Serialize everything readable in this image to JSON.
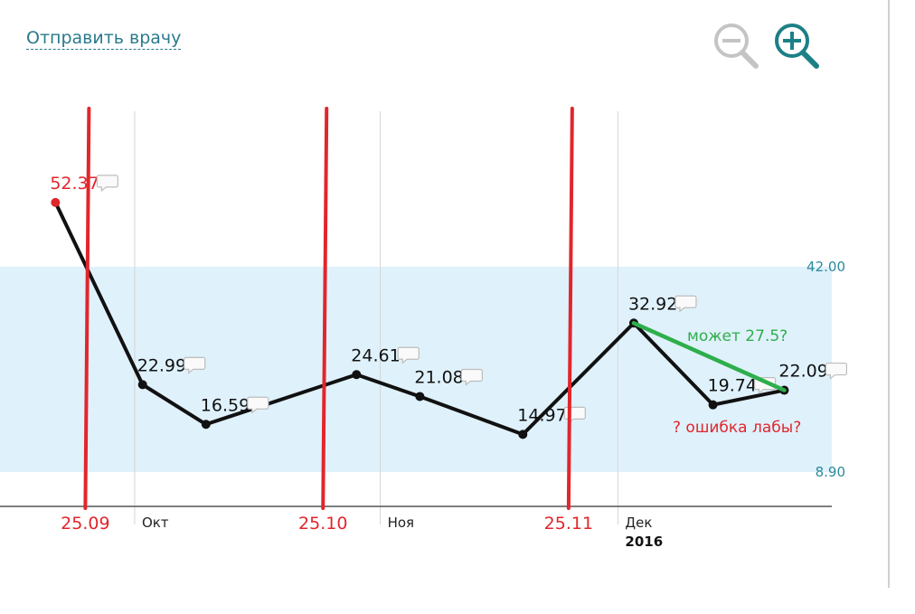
{
  "header": {
    "send_link": "Отправить врачу",
    "zoom_out_icon": "zoom-out-icon",
    "zoom_in_icon": "zoom-in-icon"
  },
  "colors": {
    "line": "#111111",
    "band": "#dff1fb",
    "ref_text": "#2a8a9c",
    "annotation_red": "#e1262c",
    "annotation_green": "#2eae4a",
    "link": "#2a7a8c"
  },
  "chart_data": {
    "type": "line",
    "title": "",
    "xlabel": "",
    "ylabel": "",
    "x": [
      "2016-09-21",
      "2016-10-02",
      "2016-10-10",
      "2016-10-29",
      "2016-11-06",
      "2016-11-19",
      "2016-12-03",
      "2016-12-13",
      "2016-12-22"
    ],
    "values": [
      52.37,
      22.99,
      16.59,
      24.61,
      21.08,
      14.97,
      32.92,
      19.74,
      22.09
    ],
    "point_labels": [
      "52.37",
      "22.99",
      "16.59",
      "24.61",
      "21.08",
      "14.97",
      "32.92",
      "19.74",
      "22.09"
    ],
    "highlighted_point": 0,
    "reference_range": {
      "low": 8.9,
      "high": 42.0,
      "low_label": "8.90",
      "high_label": "42.00"
    },
    "month_ticks": [
      {
        "date": "2016-10-01",
        "label": "Окт"
      },
      {
        "date": "2016-11-01",
        "label": "Ноя"
      },
      {
        "date": "2016-12-01",
        "label": "Дек",
        "year": "2016"
      }
    ],
    "annotations": {
      "date_markers": [
        {
          "date": "2016-09-25",
          "label": "25.09"
        },
        {
          "date": "2016-10-25",
          "label": "25.10"
        },
        {
          "date": "2016-11-25",
          "label": "25.11"
        }
      ],
      "suggested_segment": {
        "from_index": 6,
        "to_index": 8,
        "text": "может 27.5?"
      },
      "question_text": "? ошибка лабы?"
    }
  }
}
